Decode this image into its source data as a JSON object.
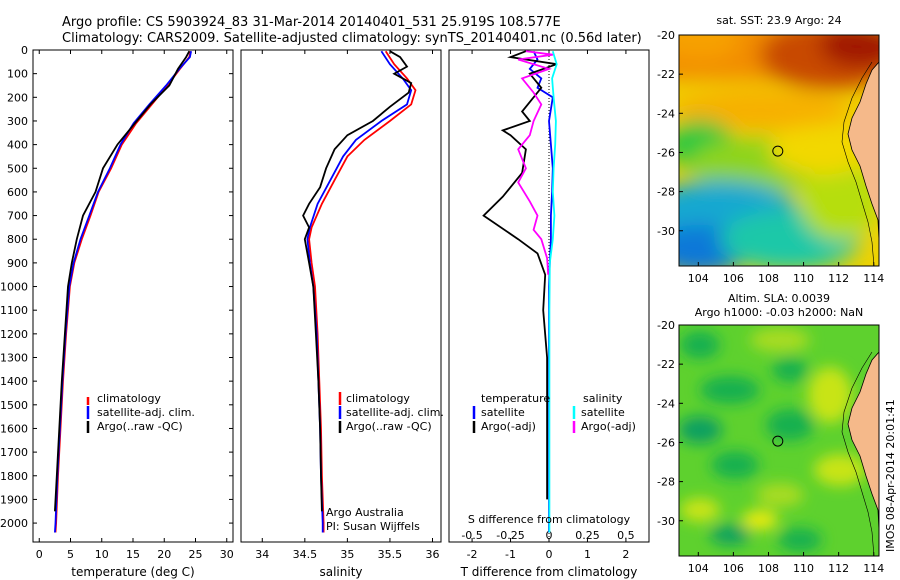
{
  "header": {
    "line1": "Argo profile: CS 5903924_83 31-Mar-2014 20140401_531 25.919S 108.577E",
    "line2": "Climatology: CARS2009. Satellite-adjusted climatology: synTS_20140401.nc (0.56d later)"
  },
  "colors": {
    "climatology": "#ff0000",
    "satellite": "#0000ff",
    "argo": "#000000",
    "sat_salinity": "#00ffff",
    "argo_adj_salinity": "#ff00ff"
  },
  "chart_data": [
    {
      "id": "temperature",
      "type": "line",
      "xlabel": "temperature (deg C)",
      "ylabel": "",
      "xlim": [
        -1,
        31
      ],
      "ylim": [
        2080,
        0
      ],
      "xticks": [
        0,
        5,
        10,
        15,
        20,
        25,
        30
      ],
      "yticks": [
        0,
        100,
        200,
        300,
        400,
        500,
        600,
        700,
        800,
        900,
        1000,
        1100,
        1200,
        1300,
        1400,
        1500,
        1600,
        1700,
        1800,
        1900,
        2000
      ],
      "legend": [
        "climatology",
        "satellite-adj. clim.",
        "Argo(..raw -QC)"
      ],
      "series": [
        {
          "color": "#ff0000",
          "points": [
            [
              24.2,
              5
            ],
            [
              24,
              30
            ],
            [
              22.5,
              80
            ],
            [
              20.5,
              150
            ],
            [
              18,
              230
            ],
            [
              15.5,
              310
            ],
            [
              13.2,
              400
            ],
            [
              11.5,
              500
            ],
            [
              9.5,
              600
            ],
            [
              8.2,
              700
            ],
            [
              6.8,
              800
            ],
            [
              5.6,
              900
            ],
            [
              4.9,
              1000
            ],
            [
              4.3,
              1200
            ],
            [
              3.8,
              1400
            ],
            [
              3.4,
              1600
            ],
            [
              3.0,
              1800
            ],
            [
              2.7,
              2000
            ],
            [
              2.6,
              2040
            ]
          ]
        },
        {
          "color": "#0000ff",
          "points": [
            [
              24.3,
              5
            ],
            [
              24.1,
              30
            ],
            [
              22.4,
              80
            ],
            [
              20.3,
              150
            ],
            [
              17.6,
              230
            ],
            [
              15.1,
              310
            ],
            [
              13.0,
              400
            ],
            [
              11.3,
              500
            ],
            [
              9.4,
              600
            ],
            [
              8.0,
              700
            ],
            [
              6.6,
              800
            ],
            [
              5.5,
              900
            ],
            [
              4.8,
              1000
            ],
            [
              4.2,
              1200
            ],
            [
              3.7,
              1400
            ],
            [
              3.3,
              1600
            ],
            [
              2.9,
              1800
            ],
            [
              2.6,
              2000
            ],
            [
              2.5,
              2040
            ]
          ]
        },
        {
          "color": "#000000",
          "points": [
            [
              24,
              5
            ],
            [
              23.5,
              30
            ],
            [
              22.2,
              80
            ],
            [
              20.8,
              150
            ],
            [
              17.8,
              230
            ],
            [
              15.3,
              310
            ],
            [
              12.5,
              400
            ],
            [
              10.2,
              500
            ],
            [
              9.0,
              600
            ],
            [
              7.0,
              700
            ],
            [
              6.0,
              800
            ],
            [
              5.2,
              900
            ],
            [
              4.6,
              1000
            ],
            [
              4.1,
              1200
            ],
            [
              3.6,
              1400
            ],
            [
              3.2,
              1600
            ],
            [
              2.8,
              1800
            ],
            [
              2.5,
              1950
            ]
          ]
        }
      ]
    },
    {
      "id": "salinity",
      "type": "line",
      "xlabel": "salinity",
      "ylabel": "",
      "xlim": [
        33.75,
        36.1
      ],
      "ylim": [
        2080,
        0
      ],
      "xticks": [
        34,
        34.5,
        35,
        35.5,
        36
      ],
      "xticklabels": [
        "34",
        "34.5",
        "35",
        "35.5",
        "36"
      ],
      "legend": [
        "climatology",
        "satellite-adj. clim.",
        "Argo(..raw -QC)"
      ],
      "annotations": [
        "Argo Australia",
        "PI: Susan Wijffels"
      ],
      "series": [
        {
          "color": "#ff0000",
          "points": [
            [
              35.45,
              5
            ],
            [
              35.55,
              60
            ],
            [
              35.7,
              120
            ],
            [
              35.8,
              170
            ],
            [
              35.75,
              230
            ],
            [
              35.5,
              300
            ],
            [
              35.2,
              380
            ],
            [
              35.0,
              450
            ],
            [
              34.85,
              550
            ],
            [
              34.7,
              650
            ],
            [
              34.58,
              750
            ],
            [
              34.55,
              800
            ],
            [
              34.58,
              900
            ],
            [
              34.62,
              1000
            ],
            [
              34.65,
              1200
            ],
            [
              34.67,
              1400
            ],
            [
              34.69,
              1600
            ],
            [
              34.7,
              1800
            ],
            [
              34.72,
              2000
            ],
            [
              34.72,
              2040
            ]
          ]
        },
        {
          "color": "#0000ff",
          "points": [
            [
              35.4,
              5
            ],
            [
              35.5,
              60
            ],
            [
              35.65,
              120
            ],
            [
              35.75,
              170
            ],
            [
              35.7,
              230
            ],
            [
              35.4,
              300
            ],
            [
              35.1,
              380
            ],
            [
              34.95,
              450
            ],
            [
              34.8,
              550
            ],
            [
              34.65,
              650
            ],
            [
              34.56,
              750
            ],
            [
              34.53,
              800
            ],
            [
              34.56,
              900
            ],
            [
              34.6,
              1000
            ],
            [
              34.64,
              1200
            ],
            [
              34.66,
              1400
            ],
            [
              34.68,
              1600
            ],
            [
              34.69,
              1800
            ],
            [
              34.71,
              2000
            ],
            [
              34.71,
              2040
            ]
          ]
        },
        {
          "color": "#000000",
          "points": [
            [
              35.5,
              5
            ],
            [
              35.62,
              30
            ],
            [
              35.7,
              70
            ],
            [
              35.55,
              100
            ],
            [
              35.75,
              140
            ],
            [
              35.72,
              180
            ],
            [
              35.5,
              240
            ],
            [
              35.3,
              300
            ],
            [
              35.0,
              360
            ],
            [
              34.85,
              420
            ],
            [
              34.75,
              500
            ],
            [
              34.68,
              580
            ],
            [
              34.55,
              650
            ],
            [
              34.48,
              700
            ],
            [
              34.55,
              750
            ],
            [
              34.5,
              800
            ],
            [
              34.55,
              900
            ],
            [
              34.6,
              1000
            ],
            [
              34.63,
              1200
            ],
            [
              34.66,
              1400
            ],
            [
              34.68,
              1600
            ],
            [
              34.69,
              1800
            ],
            [
              34.7,
              1950
            ]
          ]
        }
      ]
    },
    {
      "id": "difference",
      "type": "line",
      "xlabel": "T difference from climatology",
      "xlabel_top": "S difference from climatology",
      "ylabel": "",
      "xlim": [
        -2.6,
        2.6
      ],
      "ylim": [
        2080,
        0
      ],
      "xticks": [
        -2,
        -1,
        0,
        1,
        2
      ],
      "xticks_top": [
        -0.5,
        -0.25,
        0,
        0.25,
        0.5
      ],
      "legend_groups": [
        {
          "title": "temperature",
          "items": [
            "satellite",
            "Argo(-adj)"
          ]
        },
        {
          "title": "salinity",
          "items": [
            "satellite",
            "Argo(-adj)"
          ]
        }
      ],
      "series": [
        {
          "name": "temperature satellite",
          "color": "#0000ff",
          "points": [
            [
              -0.4,
              5
            ],
            [
              -0.3,
              40
            ],
            [
              -0.5,
              80
            ],
            [
              -0.2,
              120
            ],
            [
              -0.3,
              160
            ],
            [
              0.1,
              200
            ],
            [
              0.0,
              300
            ],
            [
              0.05,
              400
            ],
            [
              0.1,
              500
            ],
            [
              0.08,
              600
            ],
            [
              0.05,
              700
            ],
            [
              0.05,
              800
            ],
            [
              0.02,
              900
            ],
            [
              0.0,
              1000
            ],
            [
              0.0,
              1200
            ],
            [
              0.0,
              1500
            ],
            [
              0.0,
              1800
            ],
            [
              0.0,
              2040
            ]
          ]
        },
        {
          "name": "temperature Argo(-adj)",
          "color": "#000000",
          "points": [
            [
              -0.6,
              5
            ],
            [
              -1.0,
              30
            ],
            [
              0.2,
              60
            ],
            [
              -0.5,
              100
            ],
            [
              -0.2,
              160
            ],
            [
              -0.7,
              260
            ],
            [
              -0.5,
              300
            ],
            [
              -1.2,
              340
            ],
            [
              -1.0,
              360
            ],
            [
              -0.6,
              420
            ],
            [
              -0.7,
              520
            ],
            [
              -1.2,
              620
            ],
            [
              -1.7,
              700
            ],
            [
              -0.8,
              800
            ],
            [
              -0.3,
              860
            ],
            [
              -0.1,
              950
            ],
            [
              -0.15,
              1100
            ],
            [
              -0.05,
              1300
            ],
            [
              -0.05,
              1500
            ],
            [
              -0.05,
              1700
            ],
            [
              -0.05,
              1900
            ]
          ]
        },
        {
          "name": "salinity satellite",
          "color": "#00ffff",
          "points": [
            [
              0.1,
              5
            ],
            [
              0.2,
              60
            ],
            [
              0.08,
              120
            ],
            [
              0.12,
              200
            ],
            [
              0.18,
              300
            ],
            [
              0.16,
              400
            ],
            [
              0.12,
              500
            ],
            [
              0.1,
              600
            ],
            [
              0.14,
              700
            ],
            [
              0.1,
              800
            ],
            [
              0.02,
              900
            ],
            [
              0.01,
              1100
            ],
            [
              0.01,
              1500
            ],
            [
              0.01,
              1800
            ],
            [
              0.01,
              2040
            ]
          ]
        },
        {
          "name": "salinity Argo(-adj)",
          "color": "#ff00ff",
          "points": [
            [
              -0.6,
              5
            ],
            [
              0.1,
              20
            ],
            [
              -0.8,
              40
            ],
            [
              0.0,
              80
            ],
            [
              -0.7,
              120
            ],
            [
              -0.4,
              180
            ],
            [
              -0.2,
              230
            ],
            [
              -0.4,
              300
            ],
            [
              -0.5,
              360
            ],
            [
              -0.8,
              420
            ],
            [
              -0.6,
              500
            ],
            [
              -0.8,
              560
            ],
            [
              -0.5,
              640
            ],
            [
              -0.3,
              700
            ],
            [
              -0.4,
              760
            ],
            [
              -0.2,
              800
            ],
            [
              -0.05,
              880
            ],
            [
              -0.02,
              950
            ]
          ]
        }
      ]
    },
    {
      "id": "sst_map",
      "type": "heatmap",
      "title": "sat. SST: 23.9 Argo: 24",
      "xlim": [
        102.9,
        114.3
      ],
      "ylim": [
        -31.8,
        -20
      ],
      "xticks": [
        104,
        106,
        108,
        110,
        112,
        114
      ],
      "yticks": [
        -20,
        -22,
        -24,
        -26,
        -28,
        -30
      ],
      "argo_position": [
        108.577,
        -25.919
      ]
    },
    {
      "id": "sla_map",
      "type": "heatmap",
      "title": "Altim. SLA: 0.0039",
      "subtitle": "Argo h1000: -0.03 h2000: NaN",
      "xlim": [
        102.9,
        114.3
      ],
      "ylim": [
        -31.8,
        -20
      ],
      "xticks": [
        104,
        106,
        108,
        110,
        112,
        114
      ],
      "yticks": [
        -20,
        -22,
        -24,
        -26,
        -28,
        -30
      ],
      "argo_position": [
        108.577,
        -25.919
      ]
    }
  ],
  "watermark": "IMOS 08-Apr-2014 20:01:41"
}
